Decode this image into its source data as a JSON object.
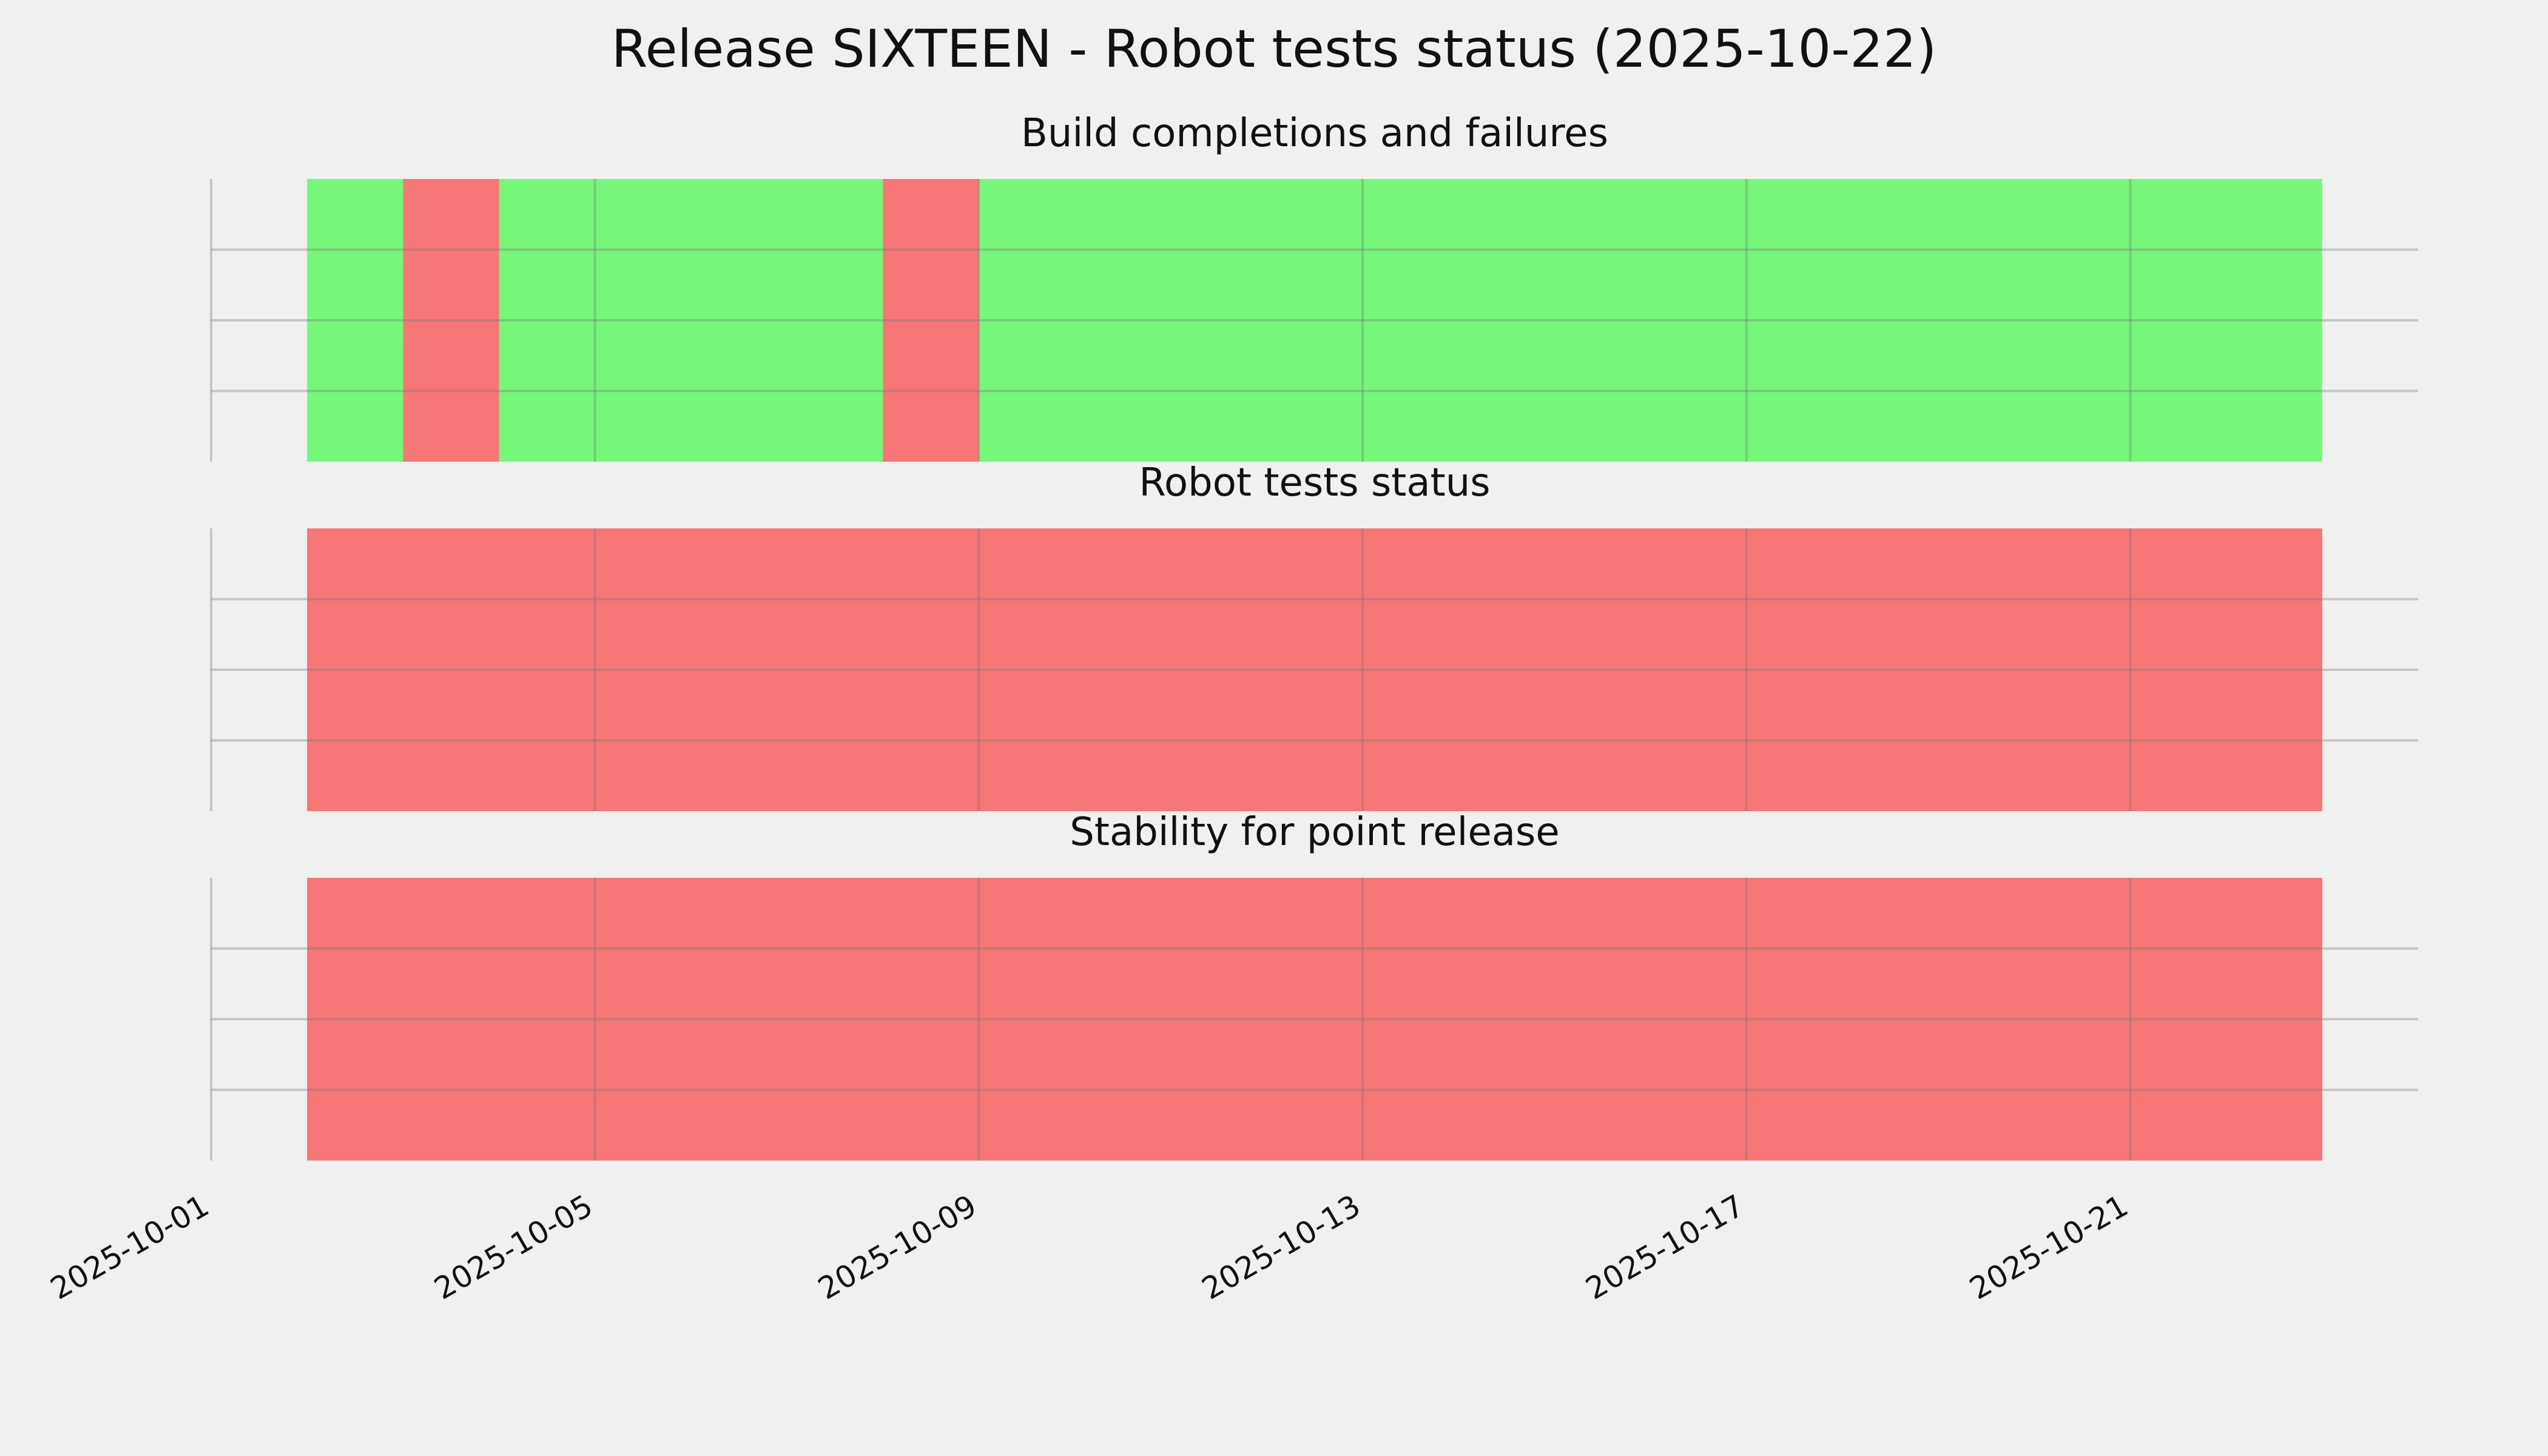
{
  "title": "Release SIXTEEN - Robot tests status (2025-10-22)",
  "chart_data": [
    {
      "type": "timeline",
      "title": "Build completions and failures",
      "spans": [
        {
          "start": "2025-10-02",
          "end": "2025-10-03",
          "color": "#77f77a"
        },
        {
          "start": "2025-10-03",
          "end": "2025-10-04",
          "color": "#f77676"
        },
        {
          "start": "2025-10-04",
          "end": "2025-10-08",
          "color": "#77f77a"
        },
        {
          "start": "2025-10-08",
          "end": "2025-10-09",
          "color": "#f77676"
        },
        {
          "start": "2025-10-09",
          "end": "2025-10-23",
          "color": "#77f77a"
        }
      ],
      "xlim": [
        "2025-10-01",
        "2025-10-24"
      ],
      "xticks": [
        "2025-10-01",
        "2025-10-05",
        "2025-10-09",
        "2025-10-13",
        "2025-10-17",
        "2025-10-21"
      ],
      "ylim": [
        0,
        4
      ],
      "yticks": [
        1,
        2,
        3
      ],
      "grid": true
    },
    {
      "type": "timeline",
      "title": "Robot tests status",
      "spans": [
        {
          "start": "2025-10-02",
          "end": "2025-10-23",
          "color": "#f77676"
        }
      ],
      "xlim": [
        "2025-10-01",
        "2025-10-24"
      ],
      "xticks": [
        "2025-10-01",
        "2025-10-05",
        "2025-10-09",
        "2025-10-13",
        "2025-10-17",
        "2025-10-21"
      ],
      "ylim": [
        0,
        4
      ],
      "yticks": [
        1,
        2,
        3
      ],
      "grid": true
    },
    {
      "type": "timeline",
      "title": "Stability for point release",
      "spans": [
        {
          "start": "2025-10-02",
          "end": "2025-10-23",
          "color": "#f77676"
        }
      ],
      "xlim": [
        "2025-10-01",
        "2025-10-24"
      ],
      "xticks": [
        "2025-10-01",
        "2025-10-05",
        "2025-10-09",
        "2025-10-13",
        "2025-10-17",
        "2025-10-21"
      ],
      "ylim": [
        0,
        4
      ],
      "yticks": [
        1,
        2,
        3
      ],
      "grid": true
    }
  ]
}
